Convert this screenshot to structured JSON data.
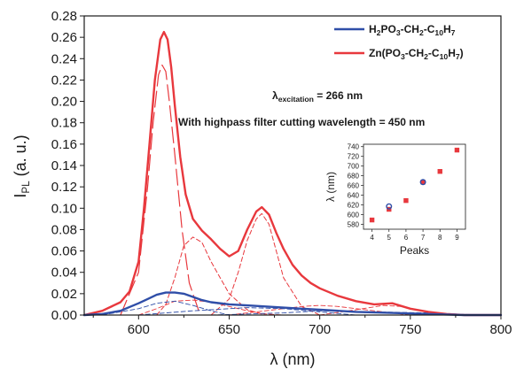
{
  "chart_data": [
    {
      "type": "line",
      "xlabel": "λ (nm)",
      "ylabel_main": "I",
      "ylabel_sub": "PL",
      "ylabel_unit": " (a. u.)",
      "xlim": [
        570,
        800
      ],
      "ylim": [
        0,
        0.28
      ],
      "x_ticks": [
        600,
        650,
        700,
        750,
        800
      ],
      "y_ticks": [
        0.0,
        0.02,
        0.04,
        0.06,
        0.08,
        0.1,
        0.12,
        0.14,
        0.16,
        0.18,
        0.2,
        0.22,
        0.24,
        0.26,
        0.28
      ],
      "grid": false,
      "legend_position": "top-right",
      "colors": {
        "blue": "#2f4ea8",
        "red": "#e8383d"
      },
      "legend": [
        {
          "color": "#2f4ea8",
          "parts": [
            {
              "t": "H",
              "s": "n"
            },
            {
              "t": "2",
              "s": "sub"
            },
            {
              "t": "PO",
              "s": "n"
            },
            {
              "t": "3",
              "s": "sub"
            },
            {
              "t": "-CH",
              "s": "n"
            },
            {
              "t": "2",
              "s": "sub"
            },
            {
              "t": "-C",
              "s": "n"
            },
            {
              "t": "10",
              "s": "sub"
            },
            {
              "t": "H",
              "s": "n"
            },
            {
              "t": "7",
              "s": "sub"
            }
          ]
        },
        {
          "color": "#e8383d",
          "parts": [
            {
              "t": "Zn(PO",
              "s": "n"
            },
            {
              "t": "3",
              "s": "sub"
            },
            {
              "t": "-CH",
              "s": "n"
            },
            {
              "t": "2",
              "s": "sub"
            },
            {
              "t": "-C",
              "s": "n"
            },
            {
              "t": "10",
              "s": "sub"
            },
            {
              "t": "H",
              "s": "n"
            },
            {
              "t": "7",
              "s": "sub"
            },
            {
              "t": ")",
              "s": "n"
            }
          ]
        }
      ],
      "annotations": [
        {
          "parts": [
            {
              "t": "λ",
              "s": "n"
            },
            {
              "t": "excitation",
              "s": "sub"
            },
            {
              "t": " = 266 nm",
              "s": "n"
            }
          ]
        },
        {
          "parts": [
            {
              "t": "With highpass filter cutting wavelength = 450 nm",
              "s": "n"
            }
          ]
        }
      ],
      "series": [
        {
          "color": "#e8383d",
          "style": "solid",
          "width": 2.4,
          "x": [
            570,
            580,
            590,
            595,
            600,
            603,
            606,
            609,
            612,
            614,
            616,
            618,
            620,
            623,
            626,
            630,
            635,
            640,
            645,
            650,
            655,
            660,
            665,
            668,
            672,
            676,
            680,
            685,
            690,
            695,
            700,
            710,
            720,
            730,
            740,
            750,
            760,
            770,
            780,
            790,
            800
          ],
          "y": [
            0.0,
            0.004,
            0.012,
            0.022,
            0.05,
            0.1,
            0.16,
            0.22,
            0.258,
            0.265,
            0.258,
            0.232,
            0.196,
            0.148,
            0.113,
            0.09,
            0.079,
            0.071,
            0.062,
            0.055,
            0.06,
            0.08,
            0.097,
            0.101,
            0.094,
            0.077,
            0.062,
            0.047,
            0.037,
            0.03,
            0.025,
            0.018,
            0.013,
            0.01,
            0.011,
            0.006,
            0.003,
            0.001,
            0.0,
            0.0,
            0.0
          ]
        },
        {
          "color": "#2f4ea8",
          "style": "solid",
          "width": 2.4,
          "x": [
            570,
            580,
            590,
            600,
            605,
            610,
            615,
            620,
            625,
            630,
            635,
            640,
            650,
            660,
            670,
            680,
            690,
            700,
            720,
            740,
            760,
            780,
            800
          ],
          "y": [
            0.0,
            0.001,
            0.004,
            0.011,
            0.015,
            0.019,
            0.021,
            0.021,
            0.02,
            0.017,
            0.014,
            0.012,
            0.01,
            0.009,
            0.008,
            0.007,
            0.006,
            0.005,
            0.003,
            0.002,
            0.001,
            0.0,
            0.0
          ]
        },
        {
          "color": "#e8383d",
          "style": "dashed-long",
          "width": 1.2,
          "x": [
            590,
            600,
            605,
            608,
            611,
            613,
            615,
            617,
            620,
            624,
            628,
            634
          ],
          "y": [
            0.0,
            0.04,
            0.12,
            0.18,
            0.225,
            0.234,
            0.228,
            0.2,
            0.15,
            0.08,
            0.03,
            0.0
          ]
        },
        {
          "color": "#e8383d",
          "style": "dashed",
          "width": 1.0,
          "x": [
            610,
            615,
            620,
            625,
            630,
            635,
            640,
            650,
            660,
            670
          ],
          "y": [
            0.0,
            0.01,
            0.035,
            0.065,
            0.073,
            0.068,
            0.05,
            0.02,
            0.005,
            0.0
          ]
        },
        {
          "color": "#e8383d",
          "style": "dashed",
          "width": 1.0,
          "x": [
            640,
            650,
            655,
            660,
            665,
            668,
            672,
            676,
            680,
            690,
            700
          ],
          "y": [
            0.0,
            0.015,
            0.04,
            0.07,
            0.09,
            0.095,
            0.085,
            0.06,
            0.035,
            0.008,
            0.0
          ]
        },
        {
          "color": "#e8383d",
          "style": "dashed",
          "width": 0.9,
          "x": [
            600,
            610,
            620,
            630,
            640,
            650,
            660,
            670,
            680
          ],
          "y": [
            0.0,
            0.006,
            0.013,
            0.014,
            0.012,
            0.008,
            0.004,
            0.001,
            0.0
          ]
        },
        {
          "color": "#e8383d",
          "style": "dashed",
          "width": 0.9,
          "x": [
            650,
            670,
            690,
            700,
            710,
            730,
            750
          ],
          "y": [
            0.0,
            0.004,
            0.008,
            0.009,
            0.008,
            0.004,
            0.0
          ]
        },
        {
          "color": "#e8383d",
          "style": "dashed",
          "width": 0.9,
          "x": [
            700,
            720,
            735,
            745,
            760,
            775
          ],
          "y": [
            0.0,
            0.005,
            0.009,
            0.008,
            0.003,
            0.0
          ]
        },
        {
          "color": "#2f4ea8",
          "style": "dashed",
          "width": 0.9,
          "x": [
            580,
            600,
            610,
            620,
            630,
            640,
            650
          ],
          "y": [
            0.0,
            0.006,
            0.011,
            0.013,
            0.009,
            0.004,
            0.0
          ]
        },
        {
          "color": "#2f4ea8",
          "style": "dashed",
          "width": 0.9,
          "x": [
            600,
            630,
            660,
            680,
            700,
            720
          ],
          "y": [
            0.0,
            0.004,
            0.007,
            0.006,
            0.003,
            0.0
          ]
        },
        {
          "color": "#2f4ea8",
          "style": "dashed",
          "width": 0.9,
          "x": [
            640,
            680,
            700,
            730,
            760,
            790
          ],
          "y": [
            0.0,
            0.002,
            0.004,
            0.003,
            0.002,
            0.0
          ]
        }
      ]
    },
    {
      "type": "scatter",
      "xlabel": "Peaks",
      "ylabel": "λ (nm)",
      "xlim": [
        3.5,
        9.5
      ],
      "ylim": [
        570,
        745
      ],
      "x_ticks": [
        4,
        5,
        6,
        7,
        8,
        9
      ],
      "y_ticks": [
        580,
        600,
        620,
        640,
        660,
        680,
        700,
        720,
        740
      ],
      "series": [
        {
          "marker": "square",
          "color": "#e8383d",
          "x": [
            4,
            5,
            6,
            7,
            8,
            9
          ],
          "y": [
            589,
            611,
            629,
            667,
            689,
            733
          ]
        },
        {
          "marker": "circle-open",
          "color": "#2f4ea8",
          "x": [
            5,
            7
          ],
          "y": [
            617,
            667
          ]
        }
      ]
    }
  ]
}
